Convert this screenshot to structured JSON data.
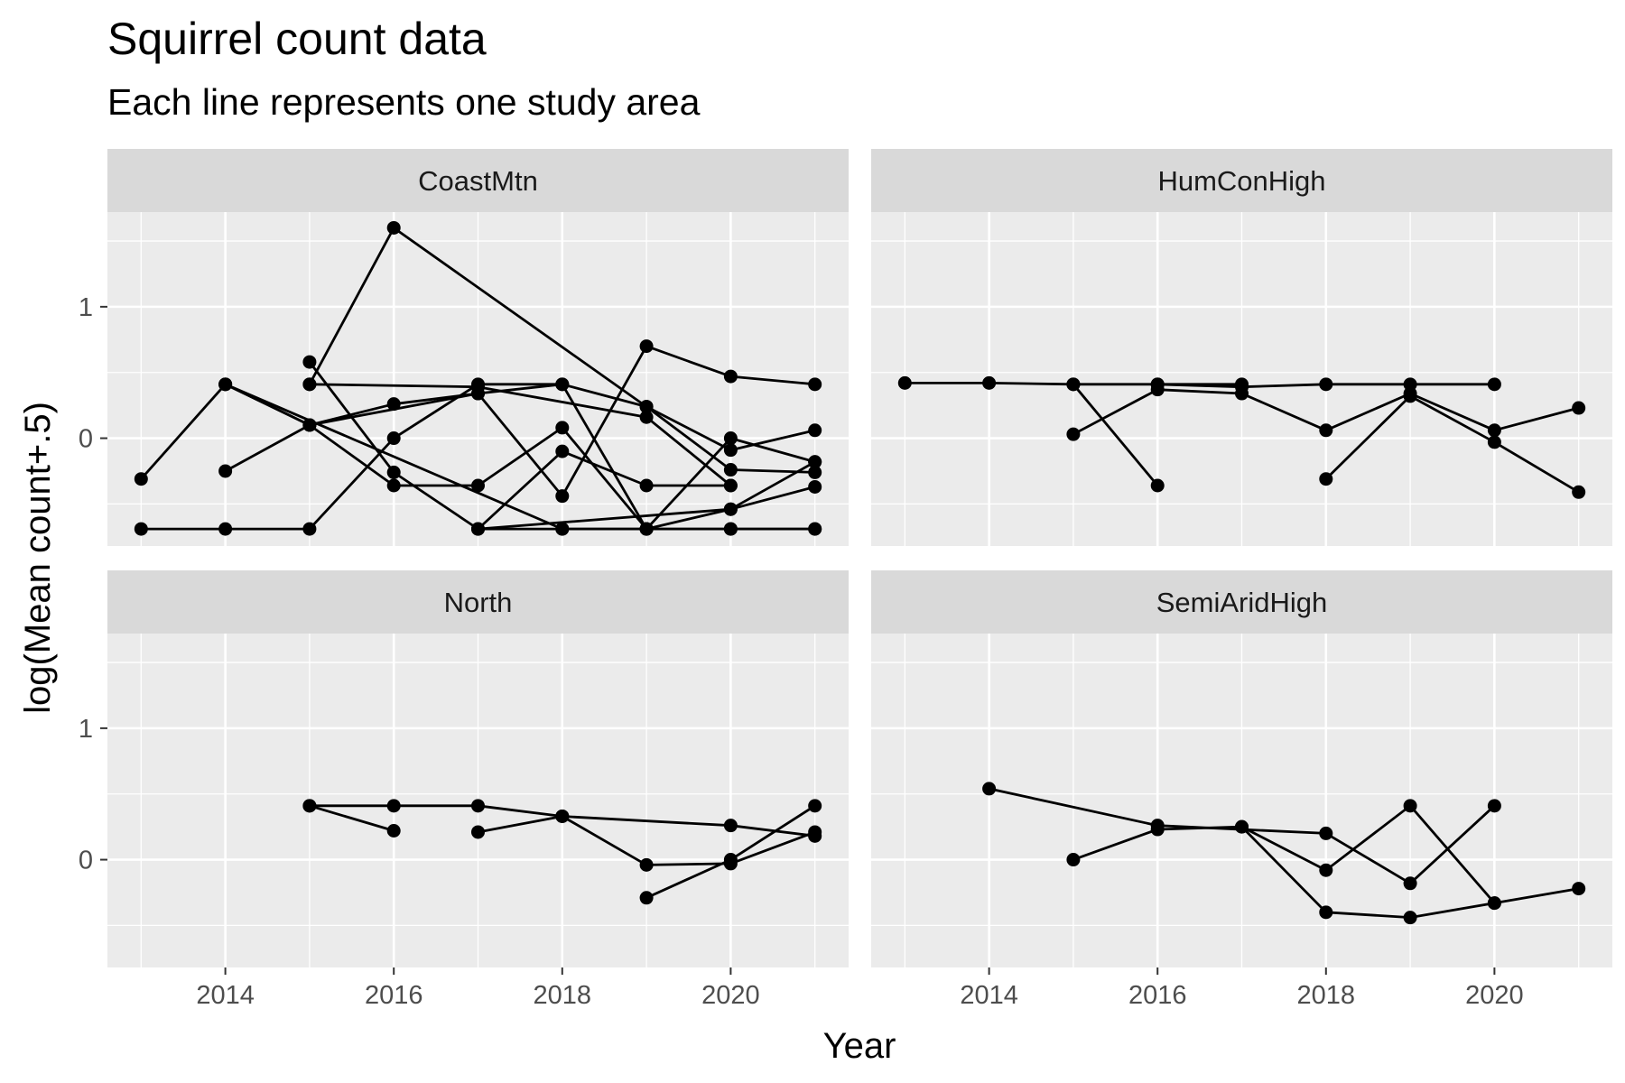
{
  "title": "Squirrel count data",
  "subtitle": "Each line represents one study area",
  "chart_data": {
    "type": "line",
    "title": "Squirrel count data",
    "subtitle": "Each line represents one study area",
    "xlabel": "Year",
    "ylabel": "log(Mean count+.5)",
    "xlim": [
      2012.6,
      2021.4
    ],
    "ylim": [
      -0.82,
      1.72
    ],
    "x_ticks": [
      2014,
      2016,
      2018,
      2020
    ],
    "x_tick_labels": [
      "2014",
      "2016",
      "2018",
      "2020"
    ],
    "y_ticks": [
      0,
      1
    ],
    "y_tick_labels": [
      "0",
      "1"
    ],
    "grid": true,
    "facets": [
      {
        "name": "CoastMtn",
        "series": [
          {
            "points": [
              [
                2013,
                -0.31
              ],
              [
                2014,
                0.41
              ],
              [
                2015,
                0.1
              ],
              [
                2016,
                -0.36
              ],
              [
                2017,
                -0.36
              ],
              [
                2018,
                0.08
              ],
              [
                2019,
                -0.69
              ],
              [
                2020,
                -0.69
              ],
              [
                2021,
                -0.69
              ]
            ]
          },
          {
            "points": [
              [
                2014,
                -0.25
              ],
              [
                2015,
                0.1
              ],
              [
                2016,
                0.26
              ],
              [
                2017,
                0.34
              ],
              [
                2018,
                0.41
              ],
              [
                2019,
                -0.69
              ],
              [
                2020,
                -0.54
              ],
              [
                2021,
                -0.37
              ]
            ]
          },
          {
            "points": [
              [
                2013,
                -0.69
              ],
              [
                2014,
                -0.69
              ],
              [
                2015,
                -0.69
              ],
              [
                2016,
                0.0
              ],
              [
                2017,
                0.41
              ],
              [
                2018,
                0.41
              ],
              [
                2019,
                0.24
              ],
              [
                2020,
                -0.09
              ],
              [
                2021,
                0.06
              ]
            ]
          },
          {
            "points": [
              [
                2015,
                0.58
              ],
              [
                2016,
                -0.26
              ],
              [
                2017,
                -0.69
              ],
              [
                2018,
                -0.69
              ],
              [
                2019,
                -0.69
              ],
              [
                2020,
                0.0
              ],
              [
                2021,
                -0.18
              ]
            ]
          },
          {
            "points": [
              [
                2015,
                0.41
              ],
              [
                2016,
                1.6
              ],
              [
                2019,
                0.24
              ],
              [
                2020,
                -0.24
              ],
              [
                2021,
                -0.26
              ]
            ]
          },
          {
            "points": [
              [
                2014,
                0.41
              ],
              [
                2015,
                0.1
              ],
              [
                2017,
                0.34
              ],
              [
                2018,
                -0.44
              ],
              [
                2019,
                0.7
              ],
              [
                2020,
                0.47
              ],
              [
                2021,
                0.41
              ]
            ]
          },
          {
            "points": [
              [
                2014,
                0.41
              ],
              [
                2018,
                -0.69
              ],
              [
                2019,
                -0.69
              ],
              [
                2020,
                -0.69
              ],
              [
                2021,
                -0.69
              ]
            ]
          },
          {
            "points": [
              [
                2015,
                0.41
              ],
              [
                2017,
                0.39
              ],
              [
                2019,
                0.16
              ],
              [
                2020,
                -0.36
              ]
            ]
          },
          {
            "points": [
              [
                2017,
                -0.69
              ],
              [
                2018,
                -0.1
              ],
              [
                2019,
                -0.36
              ],
              [
                2020,
                -0.36
              ]
            ]
          },
          {
            "points": [
              [
                2017,
                -0.69
              ],
              [
                2020,
                -0.54
              ],
              [
                2021,
                -0.18
              ]
            ]
          }
        ]
      },
      {
        "name": "HumConHigh",
        "series": [
          {
            "points": [
              [
                2013,
                0.42
              ],
              [
                2014,
                0.42
              ],
              [
                2015,
                0.41
              ],
              [
                2016,
                0.41
              ],
              [
                2017,
                0.39
              ],
              [
                2018,
                0.41
              ],
              [
                2019,
                0.41
              ],
              [
                2020,
                0.41
              ]
            ]
          },
          {
            "points": [
              [
                2015,
                0.41
              ],
              [
                2016,
                -0.36
              ]
            ]
          },
          {
            "points": [
              [
                2015,
                0.03
              ],
              [
                2016,
                0.37
              ],
              [
                2017,
                0.34
              ],
              [
                2018,
                0.06
              ],
              [
                2019,
                0.34
              ],
              [
                2020,
                0.06
              ],
              [
                2021,
                0.23
              ]
            ]
          },
          {
            "points": [
              [
                2016,
                0.41
              ],
              [
                2017,
                0.41
              ]
            ]
          },
          {
            "points": [
              [
                2018,
                -0.31
              ],
              [
                2019,
                0.32
              ],
              [
                2020,
                -0.03
              ],
              [
                2021,
                -0.41
              ]
            ]
          }
        ]
      },
      {
        "name": "North",
        "series": [
          {
            "points": [
              [
                2015,
                0.41
              ],
              [
                2016,
                0.41
              ],
              [
                2017,
                0.41
              ],
              [
                2018,
                0.33
              ],
              [
                2019,
                -0.04
              ],
              [
                2020,
                -0.03
              ],
              [
                2021,
                0.21
              ]
            ]
          },
          {
            "points": [
              [
                2015,
                0.41
              ],
              [
                2016,
                0.22
              ]
            ]
          },
          {
            "points": [
              [
                2017,
                0.21
              ],
              [
                2018,
                0.33
              ],
              [
                2020,
                0.26
              ],
              [
                2021,
                0.18
              ]
            ]
          },
          {
            "points": [
              [
                2019,
                -0.29
              ],
              [
                2020,
                0.0
              ],
              [
                2021,
                0.41
              ]
            ]
          }
        ]
      },
      {
        "name": "SemiAridHigh",
        "series": [
          {
            "points": [
              [
                2014,
                0.54
              ],
              [
                2016,
                0.26
              ],
              [
                2018,
                0.2
              ],
              [
                2019,
                -0.18
              ],
              [
                2020,
                0.41
              ]
            ]
          },
          {
            "points": [
              [
                2015,
                0.0
              ],
              [
                2016,
                0.23
              ],
              [
                2017,
                0.25
              ],
              [
                2018,
                -0.08
              ],
              [
                2019,
                0.41
              ],
              [
                2020,
                -0.33
              ]
            ]
          },
          {
            "points": [
              [
                2017,
                0.25
              ],
              [
                2018,
                -0.4
              ],
              [
                2019,
                -0.44
              ],
              [
                2020,
                -0.33
              ],
              [
                2021,
                -0.22
              ]
            ]
          }
        ]
      }
    ]
  }
}
